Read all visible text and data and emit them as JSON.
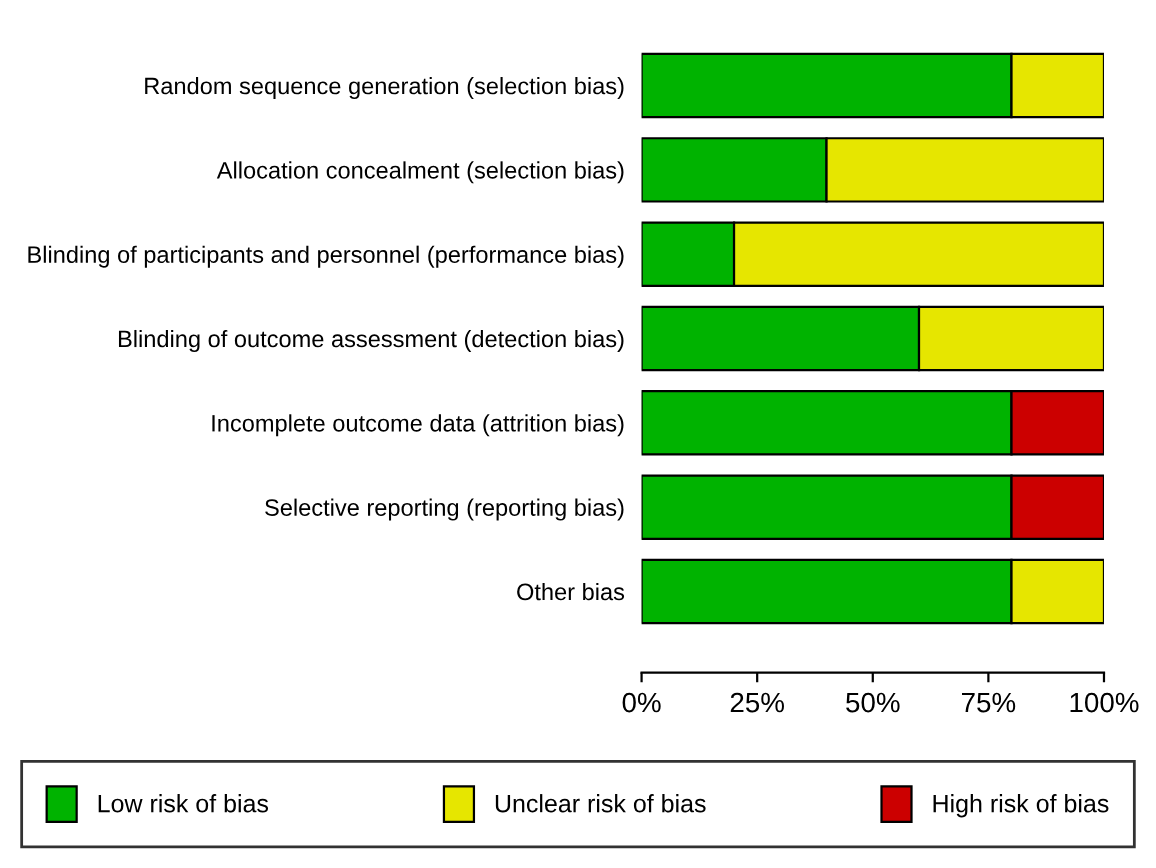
{
  "chart_data": {
    "type": "bar",
    "orientation": "horizontal",
    "stacked": true,
    "categories": [
      "Random sequence generation (selection bias)",
      "Allocation concealment (selection bias)",
      "Blinding of participants and personnel (performance bias)",
      "Blinding of outcome assessment (detection bias)",
      "Incomplete outcome data (attrition bias)",
      "Selective reporting (reporting bias)",
      "Other bias"
    ],
    "series": [
      {
        "name": "Low risk of bias",
        "color": "#00b300",
        "values": [
          80,
          40,
          20,
          60,
          80,
          80,
          80
        ]
      },
      {
        "name": "Unclear risk of bias",
        "color": "#e6e600",
        "values": [
          20,
          60,
          80,
          40,
          0,
          0,
          20
        ]
      },
      {
        "name": "High risk of bias",
        "color": "#cc0000",
        "values": [
          0,
          0,
          0,
          0,
          20,
          20,
          0
        ]
      }
    ],
    "xlim": [
      0,
      100
    ],
    "xticks": [
      {
        "value": 0,
        "label": "0%"
      },
      {
        "value": 25,
        "label": "25%"
      },
      {
        "value": 50,
        "label": "50%"
      },
      {
        "value": 75,
        "label": "75%"
      },
      {
        "value": 100,
        "label": "100%"
      }
    ],
    "grid": false,
    "legend": "bottom"
  }
}
